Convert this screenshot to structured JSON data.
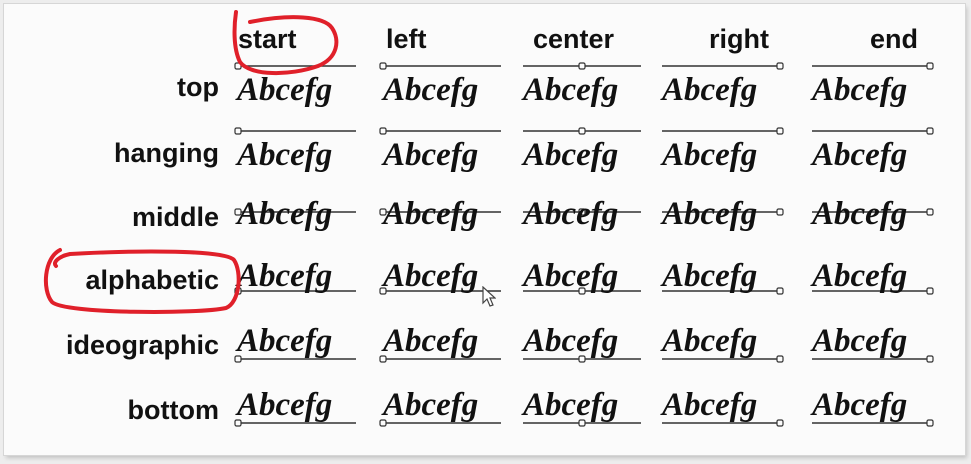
{
  "columns": [
    {
      "key": "start",
      "label": "start"
    },
    {
      "key": "left",
      "label": "left"
    },
    {
      "key": "center",
      "label": "center"
    },
    {
      "key": "right",
      "label": "right"
    },
    {
      "key": "end",
      "label": "end"
    }
  ],
  "rows": [
    {
      "key": "top",
      "label": "top"
    },
    {
      "key": "hanging",
      "label": "hanging"
    },
    {
      "key": "middle",
      "label": "middle"
    },
    {
      "key": "alphabetic",
      "label": "alphabetic"
    },
    {
      "key": "ideographic",
      "label": "ideographic"
    },
    {
      "key": "bottom",
      "label": "bottom"
    }
  ],
  "sample_text": "Abcefg",
  "highlighted": [
    "start",
    "alphabetic"
  ],
  "annotation_color": "#e0202a",
  "guide_color": "#333333"
}
